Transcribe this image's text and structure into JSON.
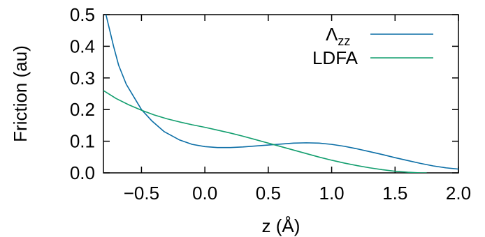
{
  "chart_data": {
    "type": "line",
    "xlabel": "z (Å)",
    "ylabel": "Friction (au)",
    "xlim": [
      -0.8,
      2.0
    ],
    "ylim": [
      0.0,
      0.5
    ],
    "xticks": [
      "−0.5",
      "0.0",
      "0.5",
      "1.0",
      "1.5",
      "2.0"
    ],
    "xtick_values": [
      -0.5,
      0.0,
      0.5,
      1.0,
      1.5,
      2.0
    ],
    "yticks": [
      "0.0",
      "0.1",
      "0.2",
      "0.3",
      "0.4",
      "0.5"
    ],
    "ytick_values": [
      0.0,
      0.1,
      0.2,
      0.3,
      0.4,
      0.5
    ],
    "grid": false,
    "legend_position": "top-right",
    "series": [
      {
        "name": "Λzz",
        "name_main": "Λ",
        "name_sub": "zz",
        "color": "#0b6ea6",
        "x": [
          -0.78,
          -0.75,
          -0.72,
          -0.68,
          -0.62,
          -0.56,
          -0.5,
          -0.42,
          -0.32,
          -0.2,
          -0.1,
          0.0,
          0.1,
          0.2,
          0.3,
          0.4,
          0.5,
          0.6,
          0.7,
          0.8,
          0.9,
          1.0,
          1.1,
          1.2,
          1.3,
          1.4,
          1.5,
          1.6,
          1.7,
          1.8,
          1.9,
          2.0
        ],
        "y": [
          0.5,
          0.45,
          0.4,
          0.34,
          0.28,
          0.24,
          0.2,
          0.165,
          0.13,
          0.104,
          0.09,
          0.083,
          0.08,
          0.08,
          0.082,
          0.085,
          0.088,
          0.091,
          0.094,
          0.095,
          0.094,
          0.09,
          0.084,
          0.076,
          0.067,
          0.058,
          0.048,
          0.039,
          0.03,
          0.022,
          0.016,
          0.012
        ]
      },
      {
        "name": "LDFA",
        "color": "#129e6e",
        "x": [
          -0.8,
          -0.7,
          -0.6,
          -0.5,
          -0.4,
          -0.3,
          -0.2,
          -0.1,
          0.0,
          0.1,
          0.2,
          0.3,
          0.4,
          0.5,
          0.6,
          0.7,
          0.8,
          0.9,
          1.0,
          1.1,
          1.2,
          1.3,
          1.4,
          1.5,
          1.6,
          1.7,
          1.75
        ],
        "y": [
          0.26,
          0.235,
          0.215,
          0.198,
          0.183,
          0.171,
          0.161,
          0.152,
          0.144,
          0.135,
          0.126,
          0.116,
          0.105,
          0.094,
          0.083,
          0.072,
          0.061,
          0.05,
          0.04,
          0.031,
          0.023,
          0.016,
          0.01,
          0.005,
          0.002,
          0.0,
          0.0
        ]
      }
    ]
  }
}
